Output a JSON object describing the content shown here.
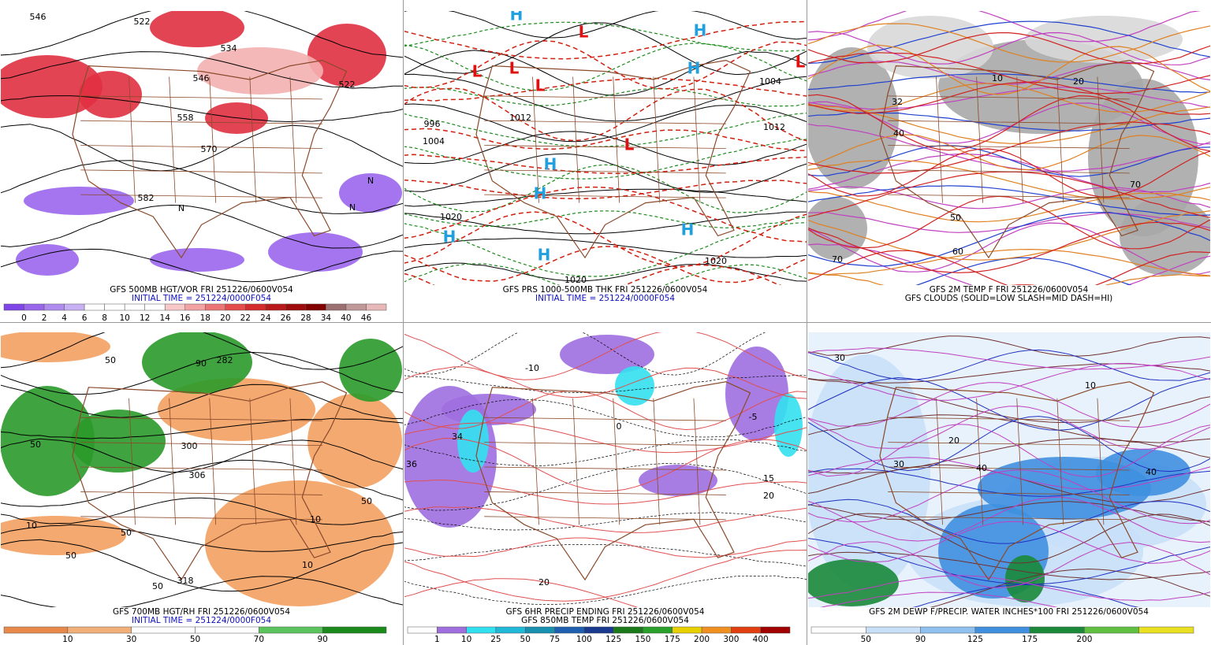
{
  "panels": [
    {
      "caption": [
        "GFS 500MB HGT/VOR FRI 251226/0600V054",
        "INITIAL TIME = 251224/0000F054"
      ],
      "colorbar": [
        0,
        2,
        4,
        6,
        8,
        10,
        12,
        14,
        16,
        18,
        20,
        22,
        24,
        26,
        28,
        34,
        40,
        46
      ],
      "labels": [
        "546",
        "522",
        "534",
        "546",
        "522",
        "558",
        "570",
        "582",
        "N",
        "N",
        "N"
      ]
    },
    {
      "caption": [
        "GFS PRS 1000-500MB THK FRI 251226/0600V054",
        "INITIAL TIME = 251224/0000F054"
      ],
      "labels": [
        "L",
        "L",
        "L",
        "L",
        "L",
        "L",
        "H",
        "H",
        "H",
        "H",
        "H",
        "H",
        "H",
        "H",
        "996",
        "1004",
        "1012",
        "1020",
        "1020",
        "1020",
        "1012",
        "1004"
      ]
    },
    {
      "caption": [
        "GFS 2M TEMP F FRI 251226/0600V054",
        "GFS CLOUDS (SOLID=LOW SLASH=MID DASH=HI)"
      ],
      "labels": [
        "70",
        "32",
        "40",
        "50",
        "60",
        "70",
        "20",
        "10"
      ]
    },
    {
      "caption": [
        "GFS 700MB HGT/RH FRI 251226/0600V054",
        "INITIAL TIME = 251224/0000F054"
      ],
      "colorbar": [
        10,
        30,
        50,
        70,
        90
      ],
      "labels": [
        "50",
        "282",
        "50",
        "300",
        "306",
        "10",
        "50",
        "50",
        "318",
        "50",
        "10",
        "10",
        "50",
        "90"
      ]
    },
    {
      "caption": [
        "GFS 6HR PRECIP ENDING FRI 251226/0600V054",
        "GFS 850MB TEMP FRI 251226/0600V054"
      ],
      "colorbar": [
        1,
        10,
        25,
        50,
        75,
        100,
        125,
        150,
        175,
        200,
        300,
        400
      ],
      "labels": [
        "36",
        "34",
        "-10",
        "-5",
        "15",
        "0",
        "20",
        "20"
      ]
    },
    {
      "caption": [
        "GFS 2M DEWP F/PRECIP. WATER INCHES*100 FRI 251226/0600V054"
      ],
      "colorbar": [
        50,
        90,
        125,
        175,
        200
      ],
      "labels": [
        "30",
        "30",
        "20",
        "40",
        "10",
        "40"
      ]
    }
  ]
}
